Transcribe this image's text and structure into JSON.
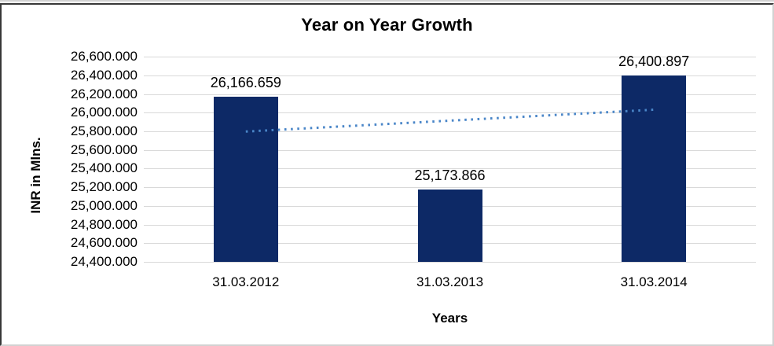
{
  "chart_data": {
    "type": "bar",
    "title": "Year on Year Growth",
    "xlabel": "Years",
    "ylabel": "INR in Mlns.",
    "categories": [
      "31.03.2012",
      "31.03.2013",
      "31.03.2014"
    ],
    "values": [
      26166.659,
      25173.866,
      26400.897
    ],
    "value_labels": [
      "26,166.659",
      "25,173.866",
      "26,400.897"
    ],
    "ylim": [
      24400,
      26600
    ],
    "ytick_step": 200,
    "yticks": [
      {
        "value": 26600,
        "label": "26,600.000"
      },
      {
        "value": 26400,
        "label": "26,400.000"
      },
      {
        "value": 26200,
        "label": "26,200.000"
      },
      {
        "value": 26000,
        "label": "26,000.000"
      },
      {
        "value": 25800,
        "label": "25,800.000"
      },
      {
        "value": 25600,
        "label": "25,600.000"
      },
      {
        "value": 25400,
        "label": "25,400.000"
      },
      {
        "value": 25200,
        "label": "25,200.000"
      },
      {
        "value": 25000,
        "label": "25,000.000"
      },
      {
        "value": 24800,
        "label": "24,800.000"
      },
      {
        "value": 24600,
        "label": "24,600.000"
      },
      {
        "value": 24400,
        "label": "24,400.000"
      }
    ],
    "grid": "horizontal",
    "legend": "none",
    "trendline": {
      "type": "linear",
      "style": "dotted"
    },
    "colors": {
      "bar": "#0d2966",
      "trendline": "#4a86c8",
      "gridline": "#d9d9d9",
      "text": "#000000",
      "frame_dark": "#383838",
      "frame_light": "#d2d2d2"
    }
  }
}
